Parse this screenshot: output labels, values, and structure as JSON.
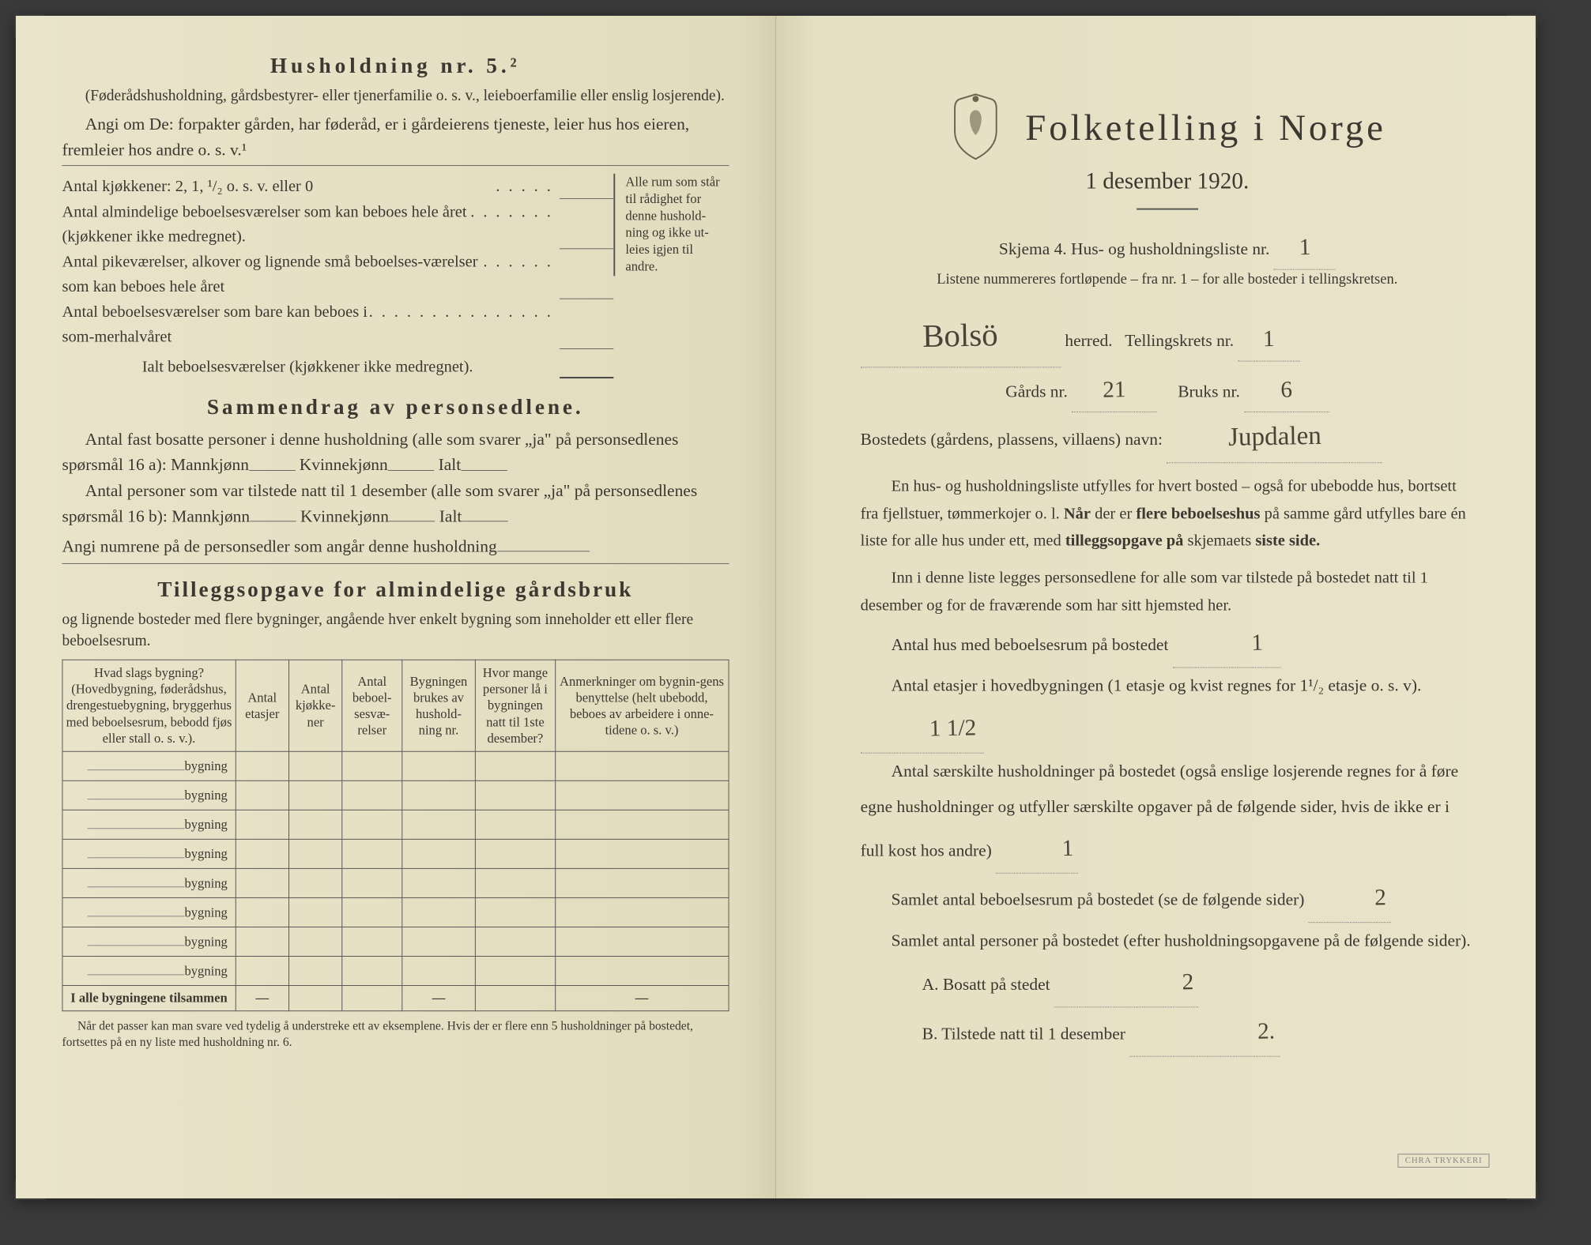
{
  "colors": {
    "paper": "#e8e3c8",
    "paper_dark": "#e2dcbe",
    "ink": "#3a3830",
    "handwriting": "#4a4438",
    "border": "#555555",
    "background": "#3a3a3a"
  },
  "left": {
    "husholdning_title": "Husholdning nr. 5.²",
    "husholdning_note": "(Føderådshusholdning, gårdsbestyrer- eller tjenerfamilie o. s. v., leieboerfamilie eller enslig losjerende).",
    "angi_line": "Angi om De:  forpakter gården, har føderåd, er i gårdeierens tjeneste, leier hus hos eieren, fremleier hos andre o. s. v.¹",
    "kjokkener_label": "Antal kjøkkener: 2, 1, ¹/₂ o. s. v. eller 0",
    "rows": [
      "Antal almindelige beboelsesværelser som kan beboes hele året (kjøkkener ikke medregnet).",
      "Antal pikeværelser, alkover og lignende små beboelses-værelser som kan beboes hele året",
      "Antal beboelsesværelser som bare kan beboes i som-merhalvåret"
    ],
    "ialt_label": "Ialt beboelsesværelser  (kjøkkener ikke medregnet).",
    "brace_text": "Alle rum som står til rådighet for denne hushold-ning og ikke ut-leies igjen til andre.",
    "sammendrag_title": "Sammendrag av personsedlene.",
    "sammendrag_p1": "Antal fast bosatte personer i denne husholdning (alle som svarer „ja\" på personsedlenes spørsmål 16 a):",
    "mannkjonn": "Mannkjønn",
    "kvinnekjonn": "Kvinnekjønn",
    "ialt": "Ialt",
    "sammendrag_p2": "Antal personer som var tilstede natt til 1 desember (alle som svarer „ja\" på personsedlenes spørsmål 16 b):",
    "angi_numrene": "Angi numrene på de personsedler som angår denne husholdning",
    "tillegg_title": "Tilleggsopgave for almindelige gårdsbruk",
    "tillegg_sub": "og lignende bosteder med flere bygninger, angående hver enkelt bygning som inneholder ett eller flere beboelsesrum.",
    "table": {
      "headers": [
        "Hvad slags bygning?\n(Hovedbygning, føderådshus, drengestuebygning, bryggerhus med beboelsesrum, bebodd fjøs eller stall o. s. v.).",
        "Antal etasjer",
        "Antal kjøkke-ner",
        "Antal beboel-sesvæ-relser",
        "Bygningen brukes av hushold-ning nr.",
        "Hvor mange personer lå i bygningen natt til 1ste desember?",
        "Anmerkninger om bygnin-gens benyttelse (helt ubebodd, beboes av arbeidere i onne-tidene o. s. v.)"
      ],
      "row_label": "bygning",
      "row_count": 8,
      "totals_label": "I alle bygningene tilsammen"
    },
    "footnote": "Når det passer kan man svare ved tydelig å understreke ett av eksemplene.\nHvis der er flere enn 5 husholdninger på bostedet, fortsettes på en ny liste med husholdning nr. 6."
  },
  "right": {
    "main_title": "Folketelling i Norge",
    "date": "1 desember 1920.",
    "skjema_line": "Skjema 4.  Hus- og husholdningsliste nr.",
    "skjema_value": "1",
    "listene_note": "Listene nummereres fortløpende – fra nr. 1 – for alle bosteder i tellingskretsen.",
    "herred_value": "Bolsö",
    "herred_label": "herred.",
    "tellingskrets_label": "Tellingskrets nr.",
    "tellingskrets_value": "1",
    "gards_label": "Gårds nr.",
    "gards_value": "21",
    "bruks_label": "Bruks nr.",
    "bruks_value": "6",
    "bostedets_label": "Bostedets (gårdens, plassens, villaens) navn:",
    "bostedets_value": "Jupdalen",
    "para1": "En hus- og husholdningsliste utfylles for hvert bosted – også for ubebodde hus, bortsett fra fjellstuer, tømmerkojer o. l.  Når der er flere beboelseshus på samme gård utfylles bare én liste for alle hus under ett, med tilleggsopgave på skjemaets siste side.",
    "para2": "Inn i denne liste legges personsedlene for alle som var tilstede på bostedet natt til 1 desember og for de fraværende som har sitt hjemsted her.",
    "f1_label": "Antal hus med beboelsesrum på bostedet",
    "f1_value": "1",
    "f2_label_a": "Antal etasjer i hovedbygningen (1 etasje og kvist regnes for 1¹/₂ etasje o. s. v).",
    "f2_value": "1 1/2",
    "f3_label": "Antal særskilte husholdninger på bostedet (også enslige losjerende regnes for å føre egne husholdninger og utfyller særskilte opgaver på de følgende sider, hvis de ikke er i full kost hos andre)",
    "f3_value": "1",
    "f4_label": "Samlet antal beboelsesrum på bostedet (se de følgende sider)",
    "f4_value": "2",
    "f5_label": "Samlet antal personer på bostedet (efter husholdningsopgavene på de følgende sider).",
    "fA_label": "A.  Bosatt på stedet",
    "fA_value": "2",
    "fB_label": "B.  Tilstede natt til 1 desember",
    "fB_value": "2.",
    "stamp": "CHRA TRYKKERI"
  }
}
